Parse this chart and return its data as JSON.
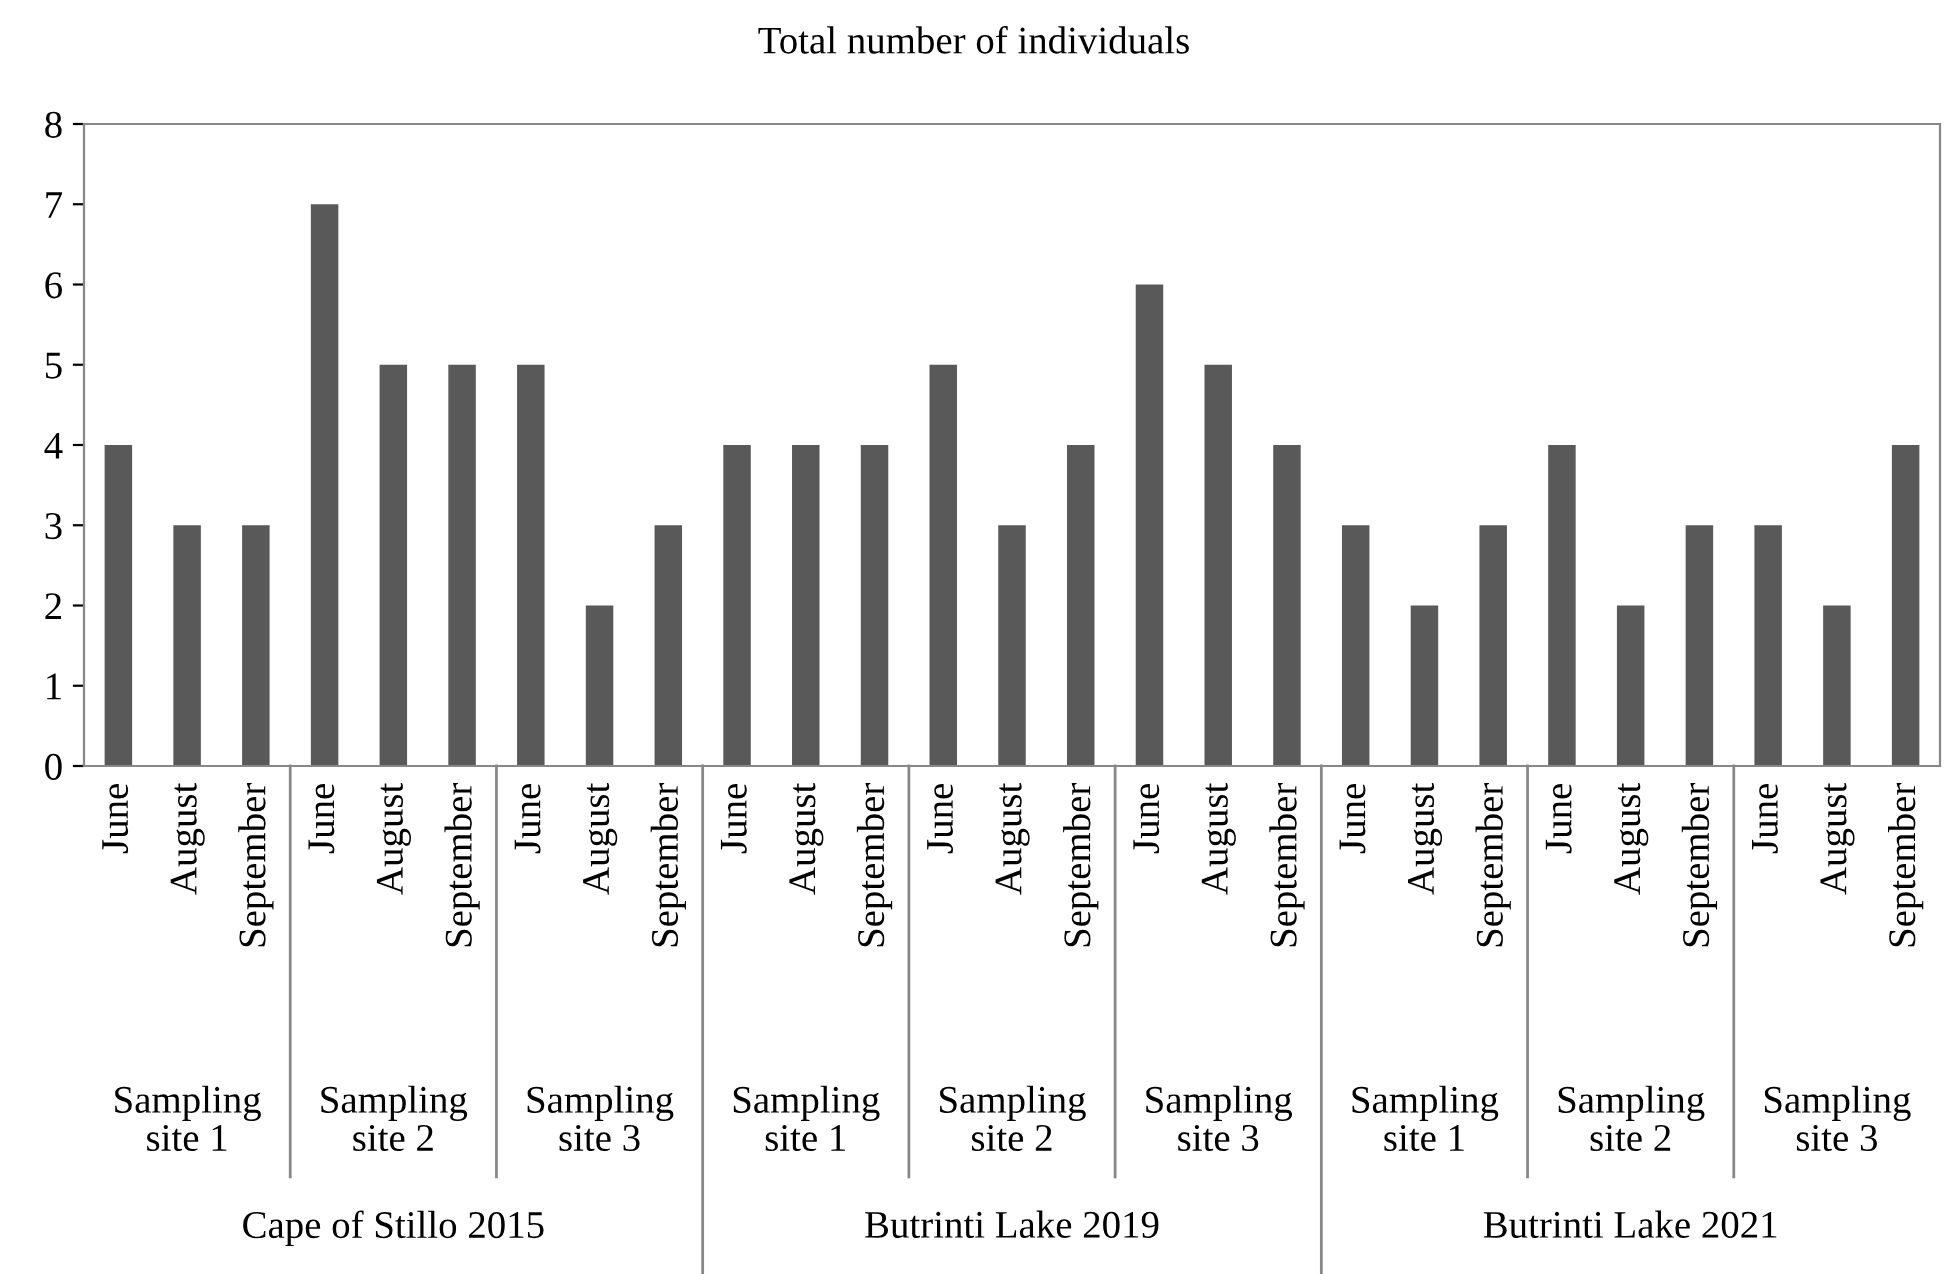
{
  "chart_data": {
    "type": "bar",
    "title": "Total number of individuals",
    "categories": [
      "June",
      "August",
      "September",
      "June",
      "August",
      "September",
      "June",
      "August",
      "September",
      "June",
      "August",
      "September",
      "June",
      "August",
      "September",
      "June",
      "August",
      "September",
      "June",
      "August",
      "September",
      "June",
      "August",
      "September",
      "June",
      "August",
      "September"
    ],
    "values": [
      4,
      3,
      3,
      7,
      5,
      5,
      5,
      2,
      3,
      4,
      4,
      4,
      5,
      3,
      4,
      6,
      5,
      4,
      3,
      2,
      3,
      4,
      2,
      3,
      3,
      2,
      4
    ],
    "color": "#595959",
    "ylim": [
      0,
      8
    ],
    "yticks": [
      0,
      1,
      2,
      3,
      4,
      5,
      6,
      7,
      8
    ],
    "grid": false,
    "legend": false,
    "annotations": [
      "Sampling site 1",
      "Sampling site 2",
      "Sampling site 3",
      "Sampling site 1",
      "Sampling site 2",
      "Sampling site 3",
      "Sampling site 1",
      "Sampling site 2",
      "Sampling site 3",
      "Cape of Stillo 2015",
      "Butrinti Lake 2019",
      "Butrinti Lake 2021"
    ]
  }
}
